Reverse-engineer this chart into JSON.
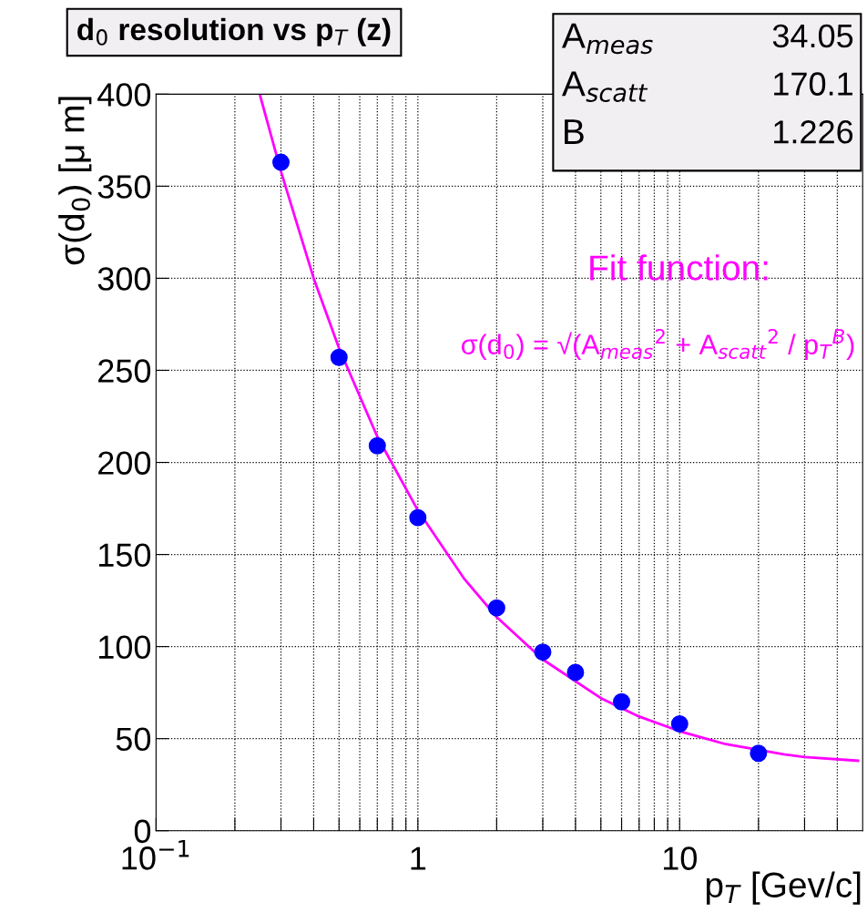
{
  "chart_data": {
    "type": "scatter",
    "title": "d$_{0}$ resolution vs p$_{T}$ (z)",
    "xlabel": "p$_{T}$ [Gev/c]",
    "ylabel": "σ(d$_{0}$) [μ m]",
    "log": "x",
    "xlim": [
      0.1,
      50
    ],
    "ylim": [
      0,
      400
    ],
    "xticks": [
      {
        "value": 0.1,
        "label": "10$^{−1}$"
      },
      {
        "value": 0.2,
        "label": null
      },
      {
        "value": 0.3,
        "label": null
      },
      {
        "value": 0.4,
        "label": null
      },
      {
        "value": 0.5,
        "label": null
      },
      {
        "value": 0.6,
        "label": null
      },
      {
        "value": 0.7,
        "label": null
      },
      {
        "value": 0.8,
        "label": null
      },
      {
        "value": 0.9,
        "label": null
      },
      1,
      {
        "value": 2,
        "label": null
      },
      {
        "value": 3,
        "label": null
      },
      {
        "value": 4,
        "label": null
      },
      {
        "value": 5,
        "label": null
      },
      {
        "value": 6,
        "label": null
      },
      {
        "value": 7,
        "label": null
      },
      {
        "value": 8,
        "label": null
      },
      {
        "value": 9,
        "label": null
      },
      10,
      {
        "value": 20,
        "label": null
      },
      {
        "value": 30,
        "label": null
      },
      {
        "value": 40,
        "label": null
      }
    ],
    "yticks": [
      0,
      50,
      100,
      150,
      200,
      250,
      300,
      350,
      400
    ],
    "grid": true,
    "series": [
      {
        "color": "#0000ff",
        "marker": "circle",
        "x": [
          0.3,
          0.5,
          0.7,
          1,
          2,
          3,
          4,
          6,
          10,
          20
        ],
        "values": [
          363,
          257,
          209,
          170,
          121,
          97,
          86,
          70,
          58,
          42
        ]
      },
      {
        "type": "line",
        "color": "#ff00ff",
        "line_style": "solid",
        "x": [
          0.25,
          0.3,
          0.4,
          0.5,
          0.7,
          1,
          1.5,
          2,
          3,
          5,
          7,
          10,
          15,
          25,
          30,
          48
        ],
        "values": [
          399,
          358,
          300,
          262,
          214,
          174,
          137,
          116,
          93,
          72,
          62,
          54,
          47,
          41.5,
          40,
          38
        ]
      }
    ],
    "annotations": [
      "A$_{meas}$\t34.05",
      "A$_{scatt}$\t170.1",
      "B\t1.226",
      "Fit function:",
      "σ(d$_{0}$) = √(A$_{meas}$$^{2}$ + A$_{scatt}$$^{2}$ / p$_{T}$$^{B}$)"
    ]
  }
}
